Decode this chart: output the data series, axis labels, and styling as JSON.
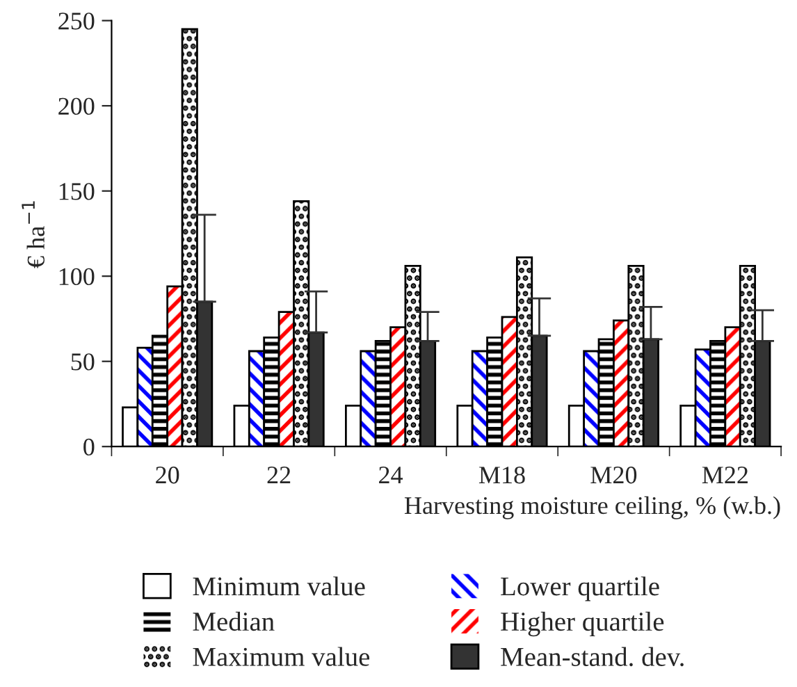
{
  "chart_data": {
    "type": "bar",
    "xlabel": "Harvesting moisture ceiling, % (w.b.)",
    "ylabel": "€ ha$^{−1}$",
    "categories": [
      "20",
      "22",
      "24",
      "M18",
      "M20",
      "M22"
    ],
    "series": [
      {
        "name": "Minimum value",
        "color": "#ffffff",
        "values": [
          23,
          24,
          24,
          24,
          24,
          24
        ]
      },
      {
        "name": "Lower quartile",
        "color": "#0000ff",
        "values": [
          58,
          56,
          56,
          56,
          56,
          57
        ]
      },
      {
        "name": "Median",
        "color": "#000000",
        "values": [
          65,
          64,
          62,
          64,
          63,
          62
        ]
      },
      {
        "name": "Higher quartile",
        "color": "#ff0000",
        "values": [
          94,
          79,
          70,
          76,
          74,
          70
        ]
      },
      {
        "name": "Maximum value",
        "color": "#000000",
        "values": [
          245,
          144,
          106,
          111,
          106,
          106
        ]
      },
      {
        "name": "Mean-stand. dev.",
        "color": "#333333",
        "values": [
          85,
          67,
          62,
          65,
          63,
          62
        ],
        "errors": [
          [
            85,
            136
          ],
          [
            67,
            91
          ],
          [
            62,
            79
          ],
          [
            65,
            87
          ],
          [
            63,
            82
          ],
          [
            62,
            80
          ]
        ]
      }
    ],
    "ylim": [
      0,
      250
    ],
    "yticks": [
      0,
      50,
      100,
      150,
      200,
      250
    ],
    "grid": false,
    "legend": "bottom"
  }
}
